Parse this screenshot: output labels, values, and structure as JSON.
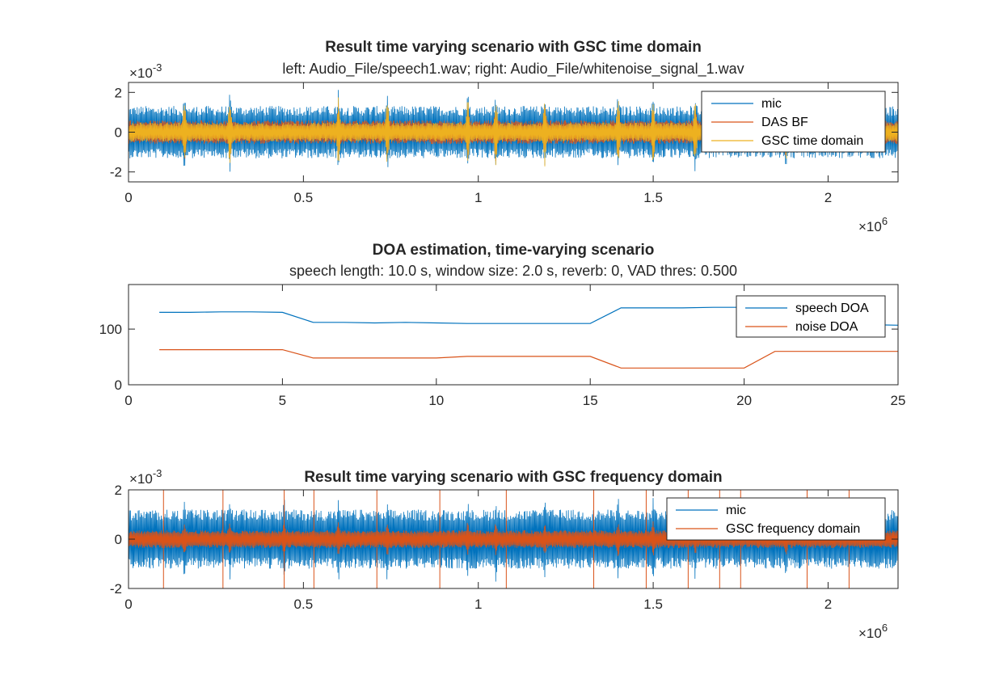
{
  "chart_data": [
    {
      "type": "line",
      "title": "Result time varying scenario with GSC time domain",
      "subtitle": "left: Audio_File/speech1.wav; right: Audio_File/whitenoise_signal_1.wav",
      "xlabel": "",
      "ylabel": "",
      "x_tick_labels": [
        "0",
        "0.5",
        "1",
        "1.5",
        "2"
      ],
      "x_ticks": [
        0,
        500000,
        1000000,
        1500000,
        2000000
      ],
      "x_exponent_label": "×10",
      "x_exponent_power": "6",
      "y_tick_labels": [
        "-2",
        "0",
        "2"
      ],
      "y_ticks": [
        -0.002,
        0,
        0.002
      ],
      "y_exponent_label": "×10",
      "y_exponent_power": "-3",
      "xlim": [
        0,
        2200000
      ],
      "ylim": [
        -0.0025,
        0.0025
      ],
      "legend_position": "top-right",
      "series": [
        {
          "name": "mic",
          "color": "#0072BD",
          "envelope": 0.0011,
          "burst_peak": 0.0022
        },
        {
          "name": "DAS BF",
          "color": "#D95319",
          "envelope": 0.0005,
          "burst_peak": 0.0015
        },
        {
          "name": "GSC time domain",
          "color": "#EDB120",
          "envelope": 0.0004,
          "burst_peak": 0.0018
        }
      ],
      "burst_positions": [
        160000,
        290000,
        600000,
        740000,
        970000,
        1050000,
        1190000,
        1400000,
        1500000,
        1620000,
        1880000
      ]
    },
    {
      "type": "line",
      "title": "DOA estimation, time-varying scenario",
      "subtitle": "speech length: 10.0 s, window size: 2.0 s, reverb: 0, VAD thres: 0.500",
      "xlabel": "",
      "ylabel": "",
      "x_tick_labels": [
        "0",
        "5",
        "10",
        "15",
        "20",
        "25"
      ],
      "x_ticks": [
        0,
        5,
        10,
        15,
        20,
        25
      ],
      "y_tick_labels": [
        "0",
        "100"
      ],
      "y_ticks": [
        0,
        100
      ],
      "xlim": [
        0,
        25
      ],
      "ylim": [
        0,
        180
      ],
      "legend_position": "top-right",
      "x": [
        1,
        2,
        3,
        4,
        5,
        6,
        7,
        8,
        9,
        10,
        11,
        12,
        13,
        14,
        15,
        16,
        17,
        18,
        19,
        20,
        21,
        22,
        23,
        24,
        25
      ],
      "series": [
        {
          "name": "speech DOA",
          "color": "#0072BD",
          "values": [
            130,
            130,
            131,
            131,
            130,
            112,
            112,
            111,
            112,
            111,
            110,
            110,
            110,
            110,
            110,
            138,
            138,
            138,
            139,
            139,
            135,
            120,
            110,
            108,
            107
          ]
        },
        {
          "name": "noise DOA",
          "color": "#D95319",
          "values": [
            63,
            63,
            63,
            63,
            63,
            48,
            48,
            48,
            48,
            48,
            51,
            51,
            51,
            51,
            51,
            30,
            30,
            30,
            30,
            30,
            60,
            60,
            60,
            60,
            60
          ]
        }
      ]
    },
    {
      "type": "line",
      "title": "Result time varying scenario with GSC frequency domain",
      "subtitle": "",
      "xlabel": "",
      "ylabel": "",
      "x_tick_labels": [
        "0",
        "0.5",
        "1",
        "1.5",
        "2"
      ],
      "x_ticks": [
        0,
        500000,
        1000000,
        1500000,
        2000000
      ],
      "x_exponent_label": "×10",
      "x_exponent_power": "6",
      "y_tick_labels": [
        "-2",
        "0",
        "2"
      ],
      "y_ticks": [
        -0.002,
        0,
        0.002
      ],
      "y_exponent_label": "×10",
      "y_exponent_power": "-3",
      "xlim": [
        0,
        2200000
      ],
      "ylim": [
        -0.002,
        0.002
      ],
      "legend_position": "top-right",
      "series": [
        {
          "name": "mic",
          "color": "#0072BD",
          "envelope": 0.001,
          "burst_peak": 0.0019
        },
        {
          "name": "GSC frequency domain",
          "color": "#D95319",
          "envelope": 0.0003,
          "burst_peak": 0.0008
        }
      ],
      "burst_positions": [
        160000,
        290000,
        445000,
        600000,
        740000,
        970000,
        1050000,
        1190000,
        1400000,
        1500000,
        1620000,
        1880000
      ],
      "spike_positions": [
        100000,
        270000,
        445000,
        530000,
        710000,
        890000,
        1080000,
        1330000,
        1480000,
        1600000,
        1690000,
        1750000,
        1940000,
        2060000
      ]
    }
  ]
}
